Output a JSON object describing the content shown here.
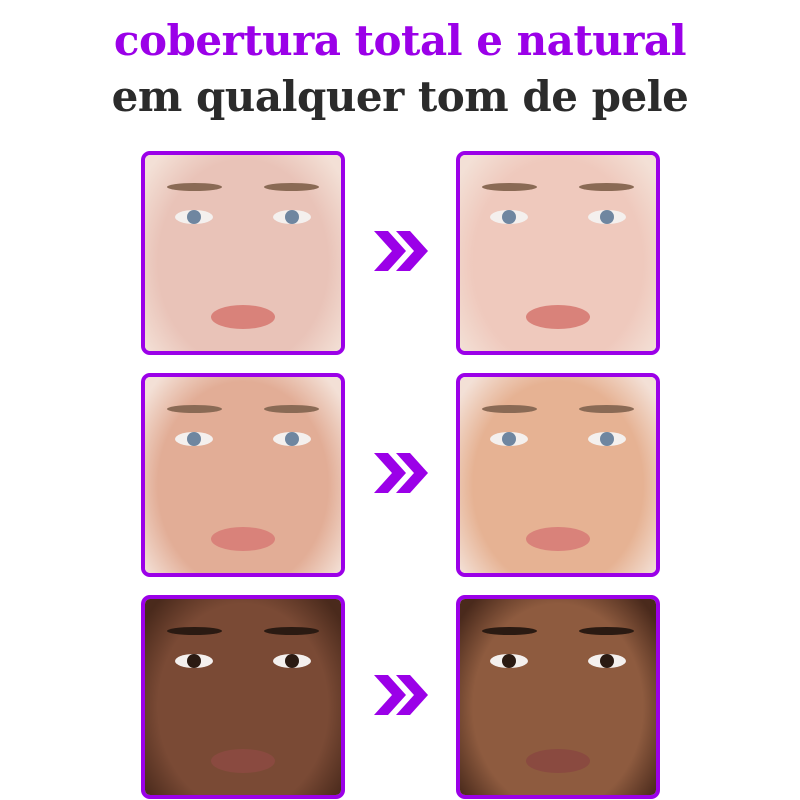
{
  "headline": {
    "line1": "cobertura total e natural",
    "line2": "em qualquer tom de pele"
  },
  "colors": {
    "accent": "#9b00e8",
    "text_dark": "#2b2b2b"
  },
  "rows": [
    {
      "label": "light",
      "before_tone": "#e9c3b8",
      "after_tone": "#efc9bd",
      "icon": "double-chevron-right"
    },
    {
      "label": "medium",
      "before_tone": "#e2ad96",
      "after_tone": "#e6b293",
      "icon": "double-chevron-right"
    },
    {
      "label": "dark",
      "before_tone": "#7a4a35",
      "after_tone": "#8e5b3f",
      "icon": "double-chevron-right"
    }
  ]
}
